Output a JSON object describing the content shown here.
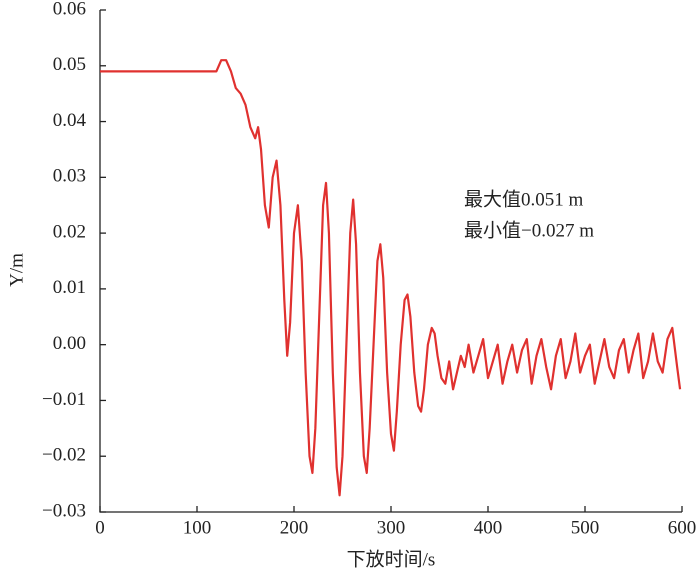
{
  "chart_data": {
    "type": "line",
    "x_label": "下放时间/s",
    "y_label": "Y/m",
    "annotations": [
      "最大值0.051 m",
      "最小值−0.027 m"
    ],
    "xlim": [
      0,
      600
    ],
    "xticks": [
      0,
      100,
      200,
      300,
      400,
      500,
      600
    ],
    "ylim": [
      -0.03,
      0.06
    ],
    "yticks": [
      {
        "value": -0.03,
        "label": "−0.03"
      },
      {
        "value": -0.02,
        "label": "−0.02"
      },
      {
        "value": -0.01,
        "label": "−0.01"
      },
      {
        "value": 0,
        "label": "0.00"
      },
      0.01,
      0.02,
      0.03,
      0.04,
      0.05,
      0.06
    ],
    "x": [
      0,
      115,
      120,
      125,
      130,
      135,
      140,
      145,
      150,
      155,
      160,
      163,
      166,
      170,
      174,
      178,
      182,
      186,
      190,
      193,
      196,
      200,
      204,
      208,
      212,
      216,
      219,
      222,
      226,
      230,
      233,
      236,
      240,
      244,
      247,
      250,
      254,
      258,
      261,
      264,
      268,
      272,
      275,
      278,
      282,
      286,
      289,
      292,
      296,
      300,
      303,
      306,
      310,
      314,
      317,
      320,
      324,
      328,
      331,
      334,
      338,
      342,
      345,
      348,
      352,
      356,
      360,
      364,
      368,
      372,
      376,
      380,
      385,
      390,
      395,
      400,
      405,
      410,
      415,
      420,
      425,
      430,
      435,
      440,
      445,
      450,
      455,
      460,
      465,
      470,
      475,
      480,
      485,
      490,
      495,
      500,
      505,
      510,
      515,
      520,
      525,
      530,
      535,
      540,
      545,
      550,
      555,
      560,
      565,
      570,
      575,
      580,
      585,
      590,
      595,
      598
    ],
    "series": [
      {
        "color": "#e0312f",
        "values": [
          0.049,
          0.049,
          0.049,
          0.051,
          0.051,
          0.049,
          0.046,
          0.045,
          0.043,
          0.039,
          0.037,
          0.039,
          0.035,
          0.025,
          0.021,
          0.03,
          0.033,
          0.025,
          0.008,
          -0.002,
          0.004,
          0.02,
          0.025,
          0.015,
          -0.005,
          -0.02,
          -0.023,
          -0.015,
          0.005,
          0.025,
          0.029,
          0.02,
          -0.005,
          -0.022,
          -0.027,
          -0.02,
          0.0,
          0.02,
          0.026,
          0.018,
          -0.005,
          -0.02,
          -0.023,
          -0.015,
          0.0,
          0.015,
          0.018,
          0.012,
          -0.005,
          -0.016,
          -0.019,
          -0.012,
          0.0,
          0.008,
          0.009,
          0.005,
          -0.005,
          -0.011,
          -0.012,
          -0.008,
          0.0,
          0.003,
          0.002,
          -0.002,
          -0.006,
          -0.007,
          -0.003,
          -0.008,
          -0.005,
          -0.002,
          -0.004,
          0.0,
          -0.005,
          -0.002,
          0.001,
          -0.006,
          -0.003,
          0.0,
          -0.007,
          -0.003,
          0.0,
          -0.005,
          -0.001,
          0.001,
          -0.007,
          -0.002,
          0.001,
          -0.004,
          -0.008,
          -0.002,
          0.001,
          -0.006,
          -0.003,
          0.002,
          -0.005,
          -0.002,
          0.0,
          -0.007,
          -0.003,
          0.001,
          -0.004,
          -0.006,
          -0.001,
          0.001,
          -0.005,
          -0.001,
          0.002,
          -0.006,
          -0.003,
          0.002,
          -0.003,
          -0.005,
          0.001,
          0.003,
          -0.004,
          -0.008
        ]
      }
    ]
  }
}
